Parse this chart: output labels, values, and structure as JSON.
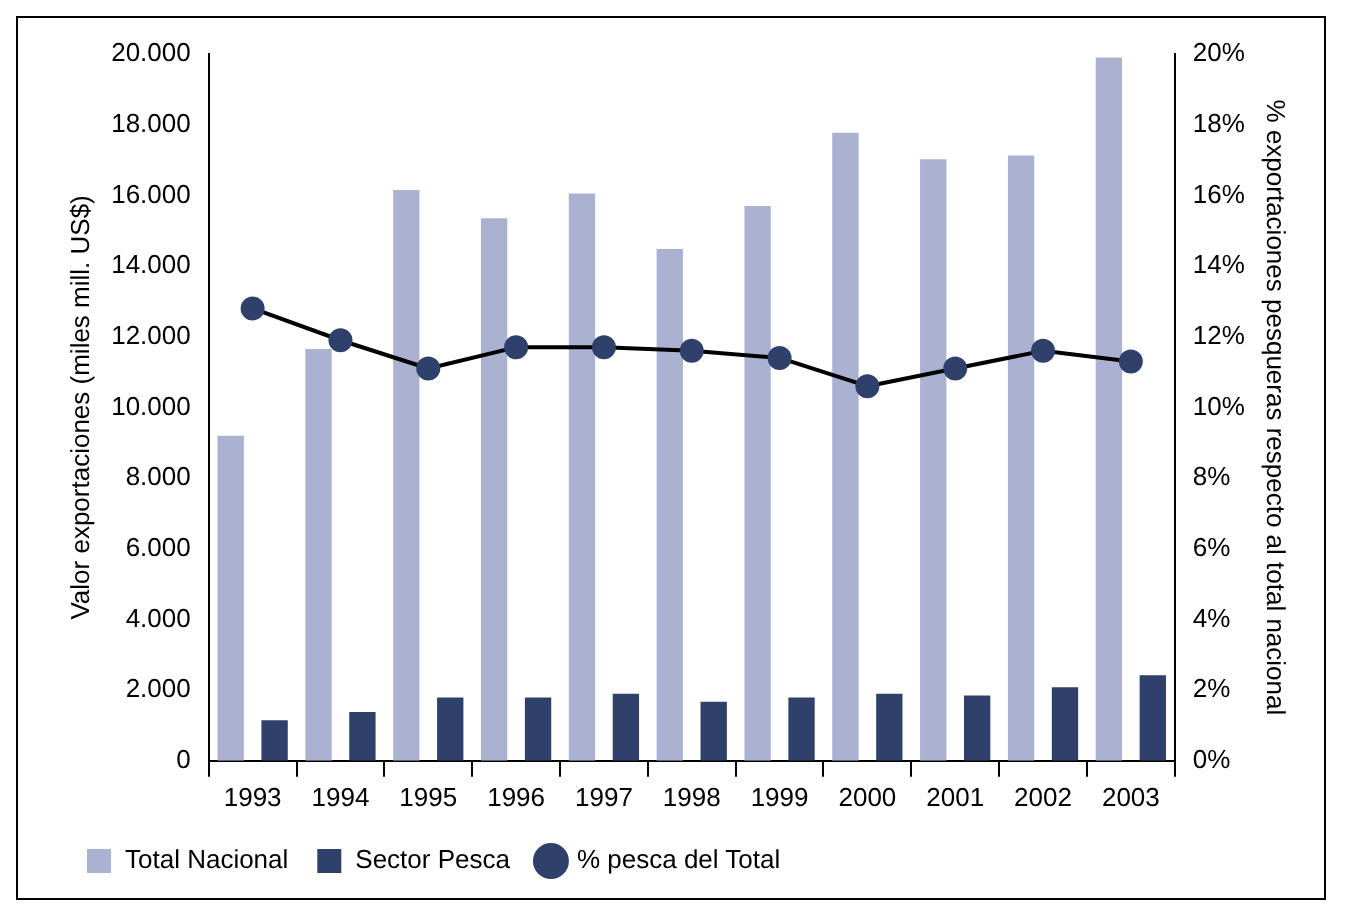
{
  "chart_data": {
    "type": "bar",
    "categories": [
      "1993",
      "1994",
      "1995",
      "1996",
      "1997",
      "1998",
      "1999",
      "2000",
      "2001",
      "2002",
      "2003"
    ],
    "series": [
      {
        "name": "Total Nacional",
        "color": "#aab1d1",
        "values": [
          9200,
          11650,
          16150,
          15350,
          16050,
          14480,
          15700,
          17770,
          17020,
          17130,
          19900
        ]
      },
      {
        "name": "Sector Pesca",
        "color": "#2f416b",
        "values": [
          1150,
          1380,
          1790,
          1790,
          1900,
          1670,
          1790,
          1900,
          1850,
          2080,
          2420
        ]
      },
      {
        "name": "% pesca del Total",
        "type": "line",
        "axis": "y2",
        "color": "#2f416b",
        "values": [
          12.8,
          11.9,
          11.1,
          11.7,
          11.7,
          11.6,
          11.4,
          10.6,
          11.1,
          11.6,
          11.3
        ]
      }
    ],
    "ylabel": "Valor exportaciones (miles mill. US$)",
    "y2label": "% exportaciones pesqueras respecto al total nacional",
    "ylim": [
      0,
      20000
    ],
    "yticks": [
      {
        "value": 0,
        "label": "0"
      },
      {
        "value": 2000,
        "label": "2.000"
      },
      {
        "value": 4000,
        "label": "4.000"
      },
      {
        "value": 6000,
        "label": "6.000"
      },
      {
        "value": 8000,
        "label": "8.000"
      },
      {
        "value": 10000,
        "label": "10.000"
      },
      {
        "value": 12000,
        "label": "12.000"
      },
      {
        "value": 14000,
        "label": "14.000"
      },
      {
        "value": 16000,
        "label": "16.000"
      },
      {
        "value": 18000,
        "label": "18.000"
      },
      {
        "value": 20000,
        "label": "20.000"
      }
    ],
    "y2lim": [
      0,
      20
    ],
    "y2ticks": [
      {
        "value": 0,
        "label": "0%"
      },
      {
        "value": 2,
        "label": "2%"
      },
      {
        "value": 4,
        "label": "4%"
      },
      {
        "value": 6,
        "label": "6%"
      },
      {
        "value": 8,
        "label": "8%"
      },
      {
        "value": 10,
        "label": "10%"
      },
      {
        "value": 12,
        "label": "12%"
      },
      {
        "value": 14,
        "label": "14%"
      },
      {
        "value": 16,
        "label": "16%"
      },
      {
        "value": 18,
        "label": "18%"
      },
      {
        "value": 20,
        "label": "20%"
      }
    ],
    "grid": false,
    "legend": "bottom",
    "marker": "circle",
    "line_style": "solid"
  }
}
